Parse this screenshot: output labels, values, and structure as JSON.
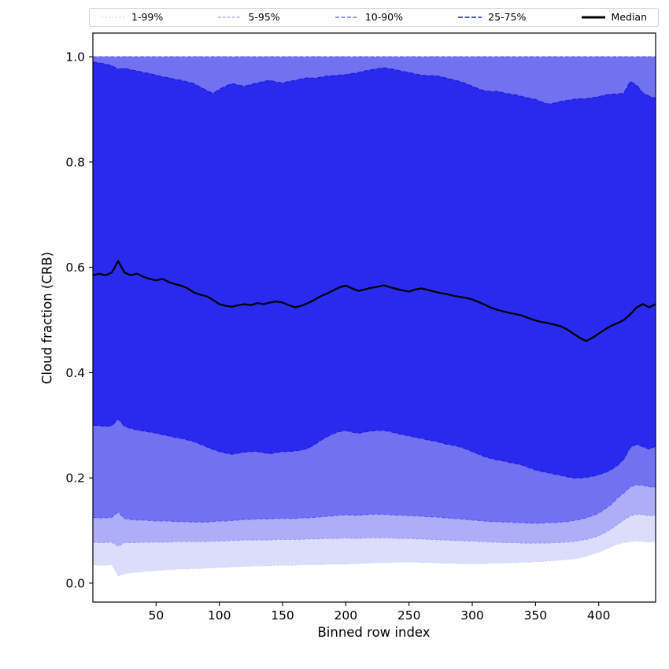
{
  "figure": {
    "xlabel": "Binned row index",
    "ylabel": "Cloud fraction (CRB)"
  },
  "legend": {
    "entries": [
      {
        "label": "1-99%",
        "color": "#cfcff7",
        "dash": "2 2.5",
        "width": 1.2
      },
      {
        "label": "5-95%",
        "color": "#9b9bf3",
        "dash": "3.5 2.5",
        "width": 1.2
      },
      {
        "label": "10-90%",
        "color": "#5a5aec",
        "dash": "5 2.5",
        "width": 1.3
      },
      {
        "label": "25-75%",
        "color": "#1c1cd8",
        "dash": "6 2.5",
        "width": 1.5
      },
      {
        "label": "Median",
        "color": "#000000",
        "dash": "",
        "width": 3
      }
    ]
  },
  "chart_data": {
    "type": "area",
    "title": "",
    "xlabel": "Binned row index",
    "ylabel": "Cloud fraction (CRB)",
    "xlim": [
      0,
      445
    ],
    "ylim": [
      -0.036,
      1.045
    ],
    "xticks": [
      50,
      100,
      150,
      200,
      250,
      300,
      350,
      400
    ],
    "yticks": [
      0.0,
      0.2,
      0.4,
      0.6,
      0.8,
      1.0
    ],
    "grid": false,
    "legend_position": "top-expand",
    "x": [
      0,
      5,
      10,
      15,
      20,
      25,
      30,
      35,
      40,
      45,
      50,
      55,
      60,
      65,
      70,
      75,
      80,
      85,
      90,
      95,
      100,
      105,
      110,
      115,
      120,
      125,
      130,
      135,
      140,
      145,
      150,
      155,
      160,
      165,
      170,
      175,
      180,
      185,
      190,
      195,
      200,
      205,
      210,
      215,
      220,
      225,
      230,
      235,
      240,
      245,
      250,
      255,
      260,
      265,
      270,
      275,
      280,
      285,
      290,
      295,
      300,
      305,
      310,
      315,
      320,
      325,
      330,
      335,
      340,
      345,
      350,
      355,
      360,
      365,
      370,
      375,
      380,
      385,
      390,
      395,
      400,
      405,
      410,
      415,
      420,
      425,
      430,
      435,
      440,
      445
    ],
    "bands": [
      {
        "name": "1-99%",
        "fill": "#dcdcfb",
        "line": "#cfcff7",
        "dash": "2 2.5",
        "upper": 1.0,
        "lower": [
          0.035,
          0.034,
          0.034,
          0.035,
          0.014,
          0.018,
          0.02,
          0.021,
          0.022,
          0.023,
          0.024,
          0.025,
          0.026,
          0.026,
          0.027,
          0.027,
          0.028,
          0.028,
          0.029,
          0.029,
          0.03,
          0.03,
          0.031,
          0.031,
          0.032,
          0.032,
          0.033,
          0.033,
          0.033,
          0.034,
          0.034,
          0.034,
          0.034,
          0.035,
          0.035,
          0.035,
          0.035,
          0.036,
          0.036,
          0.036,
          0.036,
          0.037,
          0.037,
          0.038,
          0.038,
          0.039,
          0.039,
          0.039,
          0.04,
          0.04,
          0.04,
          0.04,
          0.039,
          0.039,
          0.039,
          0.038,
          0.038,
          0.038,
          0.037,
          0.037,
          0.037,
          0.037,
          0.037,
          0.038,
          0.038,
          0.038,
          0.039,
          0.039,
          0.04,
          0.04,
          0.041,
          0.041,
          0.042,
          0.043,
          0.044,
          0.045,
          0.046,
          0.048,
          0.051,
          0.055,
          0.059,
          0.064,
          0.069,
          0.074,
          0.077,
          0.079,
          0.08,
          0.079,
          0.078,
          0.079
        ]
      },
      {
        "name": "5-95%",
        "fill": "#adadf8",
        "line": "#9b9bf3",
        "dash": "3.5 2.5",
        "upper": 1.0,
        "lower": [
          0.078,
          0.077,
          0.077,
          0.078,
          0.07,
          0.077,
          0.077,
          0.077,
          0.078,
          0.078,
          0.078,
          0.078,
          0.078,
          0.079,
          0.079,
          0.079,
          0.079,
          0.079,
          0.079,
          0.08,
          0.08,
          0.08,
          0.081,
          0.081,
          0.082,
          0.082,
          0.082,
          0.082,
          0.082,
          0.083,
          0.083,
          0.083,
          0.083,
          0.083,
          0.084,
          0.084,
          0.084,
          0.085,
          0.085,
          0.085,
          0.086,
          0.085,
          0.085,
          0.086,
          0.086,
          0.086,
          0.086,
          0.086,
          0.085,
          0.085,
          0.085,
          0.084,
          0.084,
          0.083,
          0.083,
          0.082,
          0.082,
          0.081,
          0.081,
          0.08,
          0.08,
          0.079,
          0.079,
          0.078,
          0.078,
          0.077,
          0.077,
          0.077,
          0.076,
          0.076,
          0.076,
          0.076,
          0.076,
          0.077,
          0.077,
          0.078,
          0.079,
          0.081,
          0.083,
          0.086,
          0.09,
          0.096,
          0.103,
          0.112,
          0.12,
          0.128,
          0.131,
          0.13,
          0.128,
          0.129
        ]
      },
      {
        "name": "10-90%",
        "fill": "#7171f2",
        "line": "#5a5aec",
        "dash": "5 2.5",
        "upper": 1.0,
        "lower": [
          0.125,
          0.124,
          0.124,
          0.125,
          0.135,
          0.123,
          0.121,
          0.12,
          0.12,
          0.119,
          0.118,
          0.118,
          0.118,
          0.117,
          0.117,
          0.117,
          0.116,
          0.116,
          0.116,
          0.117,
          0.118,
          0.118,
          0.119,
          0.12,
          0.121,
          0.121,
          0.122,
          0.122,
          0.122,
          0.123,
          0.123,
          0.123,
          0.123,
          0.124,
          0.124,
          0.125,
          0.126,
          0.127,
          0.128,
          0.129,
          0.13,
          0.129,
          0.129,
          0.13,
          0.131,
          0.131,
          0.131,
          0.13,
          0.129,
          0.129,
          0.128,
          0.128,
          0.127,
          0.126,
          0.126,
          0.125,
          0.124,
          0.123,
          0.122,
          0.121,
          0.12,
          0.119,
          0.118,
          0.117,
          0.117,
          0.116,
          0.116,
          0.115,
          0.115,
          0.114,
          0.114,
          0.114,
          0.115,
          0.115,
          0.116,
          0.117,
          0.119,
          0.121,
          0.124,
          0.128,
          0.133,
          0.141,
          0.15,
          0.162,
          0.172,
          0.183,
          0.187,
          0.186,
          0.183,
          0.182
        ]
      },
      {
        "name": "25-75%",
        "fill": "#2a2aee",
        "line": "#1c1cd8",
        "dash": "6 2.5",
        "upper": [
          0.99,
          0.988,
          0.986,
          0.983,
          0.976,
          0.978,
          0.975,
          0.973,
          0.97,
          0.968,
          0.965,
          0.962,
          0.96,
          0.957,
          0.955,
          0.952,
          0.949,
          0.942,
          0.936,
          0.93,
          0.938,
          0.944,
          0.949,
          0.946,
          0.944,
          0.947,
          0.95,
          0.953,
          0.955,
          0.952,
          0.95,
          0.953,
          0.955,
          0.958,
          0.96,
          0.959,
          0.961,
          0.963,
          0.964,
          0.965,
          0.966,
          0.968,
          0.97,
          0.973,
          0.975,
          0.977,
          0.979,
          0.977,
          0.975,
          0.972,
          0.97,
          0.967,
          0.965,
          0.964,
          0.964,
          0.962,
          0.959,
          0.956,
          0.953,
          0.949,
          0.944,
          0.939,
          0.935,
          0.934,
          0.934,
          0.931,
          0.929,
          0.927,
          0.924,
          0.921,
          0.919,
          0.914,
          0.91,
          0.912,
          0.915,
          0.917,
          0.919,
          0.92,
          0.92,
          0.922,
          0.924,
          0.927,
          0.929,
          0.929,
          0.931,
          0.953,
          0.946,
          0.931,
          0.925,
          0.921
        ],
        "lower": [
          0.3,
          0.299,
          0.298,
          0.299,
          0.312,
          0.298,
          0.294,
          0.291,
          0.289,
          0.287,
          0.285,
          0.282,
          0.28,
          0.277,
          0.275,
          0.272,
          0.269,
          0.264,
          0.259,
          0.254,
          0.25,
          0.247,
          0.245,
          0.247,
          0.249,
          0.25,
          0.25,
          0.248,
          0.246,
          0.248,
          0.25,
          0.25,
          0.251,
          0.253,
          0.256,
          0.263,
          0.271,
          0.278,
          0.284,
          0.288,
          0.29,
          0.287,
          0.285,
          0.287,
          0.289,
          0.29,
          0.29,
          0.288,
          0.285,
          0.282,
          0.28,
          0.277,
          0.275,
          0.272,
          0.27,
          0.267,
          0.264,
          0.262,
          0.259,
          0.255,
          0.25,
          0.245,
          0.24,
          0.237,
          0.234,
          0.232,
          0.229,
          0.227,
          0.224,
          0.219,
          0.215,
          0.212,
          0.21,
          0.207,
          0.205,
          0.202,
          0.2,
          0.2,
          0.201,
          0.203,
          0.206,
          0.21,
          0.216,
          0.224,
          0.236,
          0.258,
          0.264,
          0.259,
          0.255,
          0.26
        ]
      }
    ],
    "median": {
      "name": "Median",
      "color": "#000000",
      "width": 2.2,
      "values": [
        0.585,
        0.588,
        0.585,
        0.59,
        0.612,
        0.59,
        0.585,
        0.588,
        0.582,
        0.578,
        0.575,
        0.578,
        0.572,
        0.568,
        0.565,
        0.56,
        0.552,
        0.548,
        0.545,
        0.538,
        0.53,
        0.527,
        0.525,
        0.528,
        0.53,
        0.528,
        0.532,
        0.53,
        0.533,
        0.535,
        0.533,
        0.528,
        0.524,
        0.527,
        0.532,
        0.538,
        0.545,
        0.55,
        0.556,
        0.562,
        0.565,
        0.56,
        0.555,
        0.558,
        0.561,
        0.563,
        0.566,
        0.562,
        0.559,
        0.556,
        0.554,
        0.558,
        0.56,
        0.557,
        0.554,
        0.551,
        0.549,
        0.546,
        0.544,
        0.542,
        0.539,
        0.534,
        0.529,
        0.523,
        0.519,
        0.516,
        0.513,
        0.511,
        0.508,
        0.503,
        0.499,
        0.496,
        0.494,
        0.491,
        0.488,
        0.482,
        0.474,
        0.466,
        0.46,
        0.466,
        0.474,
        0.482,
        0.489,
        0.494,
        0.5,
        0.511,
        0.524,
        0.53,
        0.524,
        0.53
      ]
    }
  }
}
